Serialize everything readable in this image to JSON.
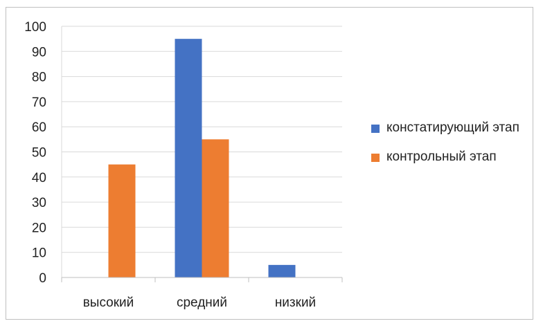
{
  "chart_data": {
    "type": "bar",
    "title": "",
    "xlabel": "",
    "ylabel": "",
    "categories": [
      "высокий",
      "средний",
      "низкий"
    ],
    "series": [
      {
        "name": "констатирующий этап",
        "color": "#4472c4",
        "values": [
          0,
          95,
          5
        ]
      },
      {
        "name": "контрольный этап",
        "color": "#ed7d31",
        "values": [
          45,
          55,
          0
        ]
      }
    ],
    "ylim": [
      0,
      100
    ],
    "yticks": [
      0,
      10,
      20,
      30,
      40,
      50,
      60,
      70,
      80,
      90,
      100
    ],
    "grid": true,
    "legend_position": "right"
  }
}
